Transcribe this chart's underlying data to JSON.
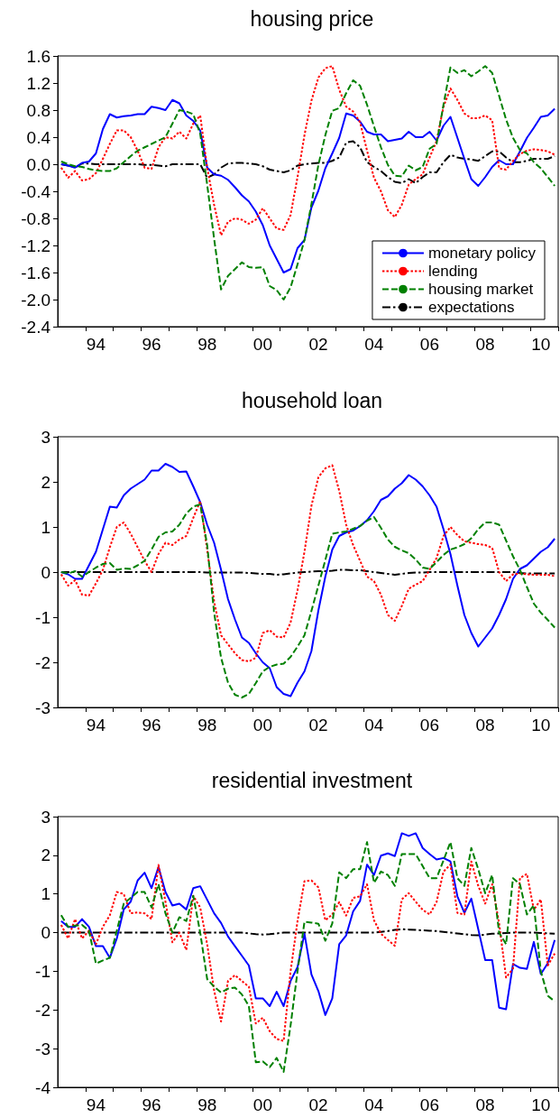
{
  "chart_data": [
    {
      "type": "line",
      "title": "housing price",
      "legend": "bottom right",
      "grid": false,
      "marker": "none",
      "categories": [
        null,
        null,
        null,
        null,
        null,
        "94",
        null,
        null,
        null,
        null,
        null,
        null,
        null,
        "96",
        null,
        null,
        null,
        null,
        null,
        null,
        null,
        "98",
        null,
        null,
        null,
        null,
        null,
        null,
        null,
        "00",
        null,
        null,
        null,
        null,
        null,
        null,
        null,
        "02",
        null,
        null,
        null,
        null,
        null,
        null,
        null,
        "04",
        null,
        null,
        null,
        null,
        null,
        null,
        null,
        "06",
        null,
        null,
        null,
        null,
        null,
        null,
        null,
        "08",
        null,
        null,
        null,
        null,
        null,
        null,
        null,
        "10",
        null,
        null
      ],
      "ylim": [
        -2.4,
        1.6
      ],
      "yticks": [
        {
          "value": -2.4,
          "label": "-2.4"
        },
        {
          "value": -2.0,
          "label": "-2.0"
        },
        {
          "value": -1.6,
          "label": "-1.6"
        },
        {
          "value": -1.2,
          "label": "-1.2"
        },
        {
          "value": -0.8,
          "label": "-0.8"
        },
        {
          "value": -0.4,
          "label": "-0.4"
        },
        {
          "value": 0,
          "label": "0.0"
        },
        {
          "value": 0.4,
          "label": "0.4"
        },
        {
          "value": 0.8,
          "label": "0.8"
        },
        {
          "value": 1.2,
          "label": "1.2"
        },
        {
          "value": 1.6,
          "label": "1.6"
        }
      ],
      "series": [
        {
          "name": "monetary policy",
          "color": "#0000ff",
          "line_style": "solid",
          "values": [
            0.0,
            -0.02,
            -0.05,
            0.02,
            0.04,
            0.16,
            0.52,
            0.74,
            0.69,
            0.71,
            0.72,
            0.74,
            0.74,
            0.85,
            0.83,
            0.8,
            0.95,
            0.9,
            0.72,
            0.64,
            0.5,
            -0.05,
            -0.15,
            -0.17,
            -0.23,
            -0.34,
            -0.46,
            -0.55,
            -0.7,
            -0.9,
            -1.2,
            -1.4,
            -1.6,
            -1.55,
            -1.24,
            -1.12,
            -0.64,
            -0.39,
            -0.06,
            0.16,
            0.39,
            0.75,
            0.72,
            0.63,
            0.48,
            0.44,
            0.44,
            0.34,
            0.36,
            0.38,
            0.48,
            0.4,
            0.4,
            0.48,
            0.35,
            0.57,
            0.7,
            0.39,
            0.08,
            -0.22,
            -0.32,
            -0.19,
            -0.04,
            0.06,
            0.0,
            0.0,
            0.19,
            0.39,
            0.54,
            0.7,
            0.72,
            0.82
          ]
        },
        {
          "name": "lending",
          "color": "#ff0000",
          "line_style": "dotted",
          "values": [
            -0.05,
            -0.2,
            -0.1,
            -0.24,
            -0.22,
            -0.13,
            0.08,
            0.3,
            0.5,
            0.5,
            0.4,
            0.2,
            -0.05,
            -0.07,
            0.25,
            0.4,
            0.38,
            0.48,
            0.38,
            0.6,
            0.72,
            -0.05,
            -0.6,
            -1.05,
            -0.85,
            -0.8,
            -0.82,
            -0.88,
            -0.82,
            -0.65,
            -0.8,
            -0.95,
            -0.97,
            -0.75,
            -0.19,
            0.43,
            0.94,
            1.28,
            1.42,
            1.45,
            1.1,
            0.85,
            0.78,
            0.62,
            0.2,
            -0.2,
            -0.4,
            -0.68,
            -0.78,
            -0.6,
            -0.3,
            -0.22,
            -0.15,
            0.1,
            0.34,
            0.85,
            1.12,
            0.95,
            0.75,
            0.68,
            0.68,
            0.72,
            0.65,
            -0.06,
            -0.08,
            0.05,
            0.15,
            0.2,
            0.22,
            0.21,
            0.19,
            0.14
          ]
        },
        {
          "name": "housing market",
          "color": "#008000",
          "line_style": "dashed",
          "values": [
            0.04,
            0.0,
            -0.03,
            -0.04,
            -0.07,
            -0.09,
            -0.1,
            -0.1,
            -0.06,
            0.03,
            0.12,
            0.2,
            0.25,
            0.3,
            0.35,
            0.4,
            0.6,
            0.8,
            0.78,
            0.74,
            0.45,
            -0.3,
            -1.1,
            -1.85,
            -1.65,
            -1.55,
            -1.45,
            -1.52,
            -1.53,
            -1.52,
            -1.8,
            -1.86,
            -2.0,
            -1.82,
            -1.48,
            -1.12,
            -0.59,
            -0.01,
            0.43,
            0.79,
            0.83,
            1.05,
            1.24,
            1.16,
            0.88,
            0.56,
            0.25,
            -0.01,
            -0.17,
            -0.18,
            -0.02,
            -0.09,
            -0.04,
            0.23,
            0.3,
            0.88,
            1.43,
            1.35,
            1.39,
            1.3,
            1.37,
            1.45,
            1.35,
            1.01,
            0.66,
            0.39,
            0.21,
            0.16,
            0.03,
            -0.06,
            -0.19,
            -0.32
          ]
        },
        {
          "name": "expectations",
          "color": "#000000",
          "line_style": "dashdot",
          "values": [
            0.0,
            -0.02,
            -0.05,
            0.01,
            0.01,
            0.0,
            0.0,
            0.0,
            0.0,
            0.0,
            0.0,
            0.0,
            -0.01,
            -0.01,
            -0.02,
            -0.03,
            0.0,
            0.0,
            0.0,
            0.0,
            0.0,
            -0.2,
            -0.15,
            -0.05,
            0.01,
            0.02,
            0.02,
            0.01,
            0.0,
            -0.03,
            -0.08,
            -0.1,
            -0.12,
            -0.09,
            -0.02,
            0.0,
            0.01,
            0.02,
            0.02,
            0.05,
            0.1,
            0.32,
            0.34,
            0.25,
            0.03,
            -0.04,
            -0.1,
            -0.19,
            -0.26,
            -0.28,
            -0.22,
            -0.28,
            -0.19,
            -0.12,
            -0.12,
            0.03,
            0.14,
            0.1,
            0.08,
            0.07,
            0.05,
            0.12,
            0.19,
            0.19,
            0.1,
            0.03,
            0.03,
            0.05,
            0.08,
            0.08,
            0.08,
            0.12
          ]
        }
      ]
    },
    {
      "type": "line",
      "title": "household loan",
      "grid": false,
      "marker": "none",
      "categories": [
        null,
        null,
        null,
        null,
        null,
        "94",
        null,
        null,
        null,
        null,
        null,
        null,
        null,
        "96",
        null,
        null,
        null,
        null,
        null,
        null,
        null,
        "98",
        null,
        null,
        null,
        null,
        null,
        null,
        null,
        "00",
        null,
        null,
        null,
        null,
        null,
        null,
        null,
        "02",
        null,
        null,
        null,
        null,
        null,
        null,
        null,
        "04",
        null,
        null,
        null,
        null,
        null,
        null,
        null,
        "06",
        null,
        null,
        null,
        null,
        null,
        null,
        null,
        "08",
        null,
        null,
        null,
        null,
        null,
        null,
        null,
        "10",
        null,
        null
      ],
      "ylim": [
        -3,
        3
      ],
      "yticks": [
        -3,
        -2,
        -1,
        0,
        1,
        2,
        3
      ],
      "series": [
        {
          "color": "#0000ff",
          "line_style": "solid",
          "values": [
            0.0,
            -0.05,
            -0.15,
            -0.15,
            0.15,
            0.45,
            0.95,
            1.45,
            1.43,
            1.7,
            1.85,
            1.95,
            2.05,
            2.25,
            2.25,
            2.4,
            2.33,
            2.22,
            2.23,
            1.9,
            1.55,
            1.05,
            0.65,
            0.05,
            -0.6,
            -1.05,
            -1.45,
            -1.57,
            -1.8,
            -2.0,
            -2.13,
            -2.55,
            -2.7,
            -2.75,
            -2.45,
            -2.2,
            -1.75,
            -0.85,
            -0.1,
            0.5,
            0.8,
            0.88,
            0.92,
            1.02,
            1.15,
            1.35,
            1.6,
            1.68,
            1.85,
            1.97,
            2.15,
            2.05,
            1.9,
            1.7,
            1.45,
            0.95,
            0.4,
            -0.3,
            -0.95,
            -1.35,
            -1.65,
            -1.45,
            -1.25,
            -0.95,
            -0.6,
            -0.15,
            0.07,
            0.15,
            0.3,
            0.45,
            0.55,
            0.74
          ]
        },
        {
          "color": "#ff0000",
          "line_style": "dotted",
          "values": [
            -0.05,
            -0.3,
            -0.18,
            -0.5,
            -0.52,
            -0.25,
            0.05,
            0.55,
            1.0,
            1.1,
            0.85,
            0.55,
            0.25,
            0.0,
            0.4,
            0.65,
            0.6,
            0.72,
            0.8,
            1.2,
            1.57,
            0.5,
            -0.65,
            -1.4,
            -1.6,
            -1.8,
            -1.95,
            -1.98,
            -1.9,
            -1.35,
            -1.29,
            -1.43,
            -1.45,
            -1.12,
            -0.4,
            0.45,
            1.47,
            2.1,
            2.3,
            2.37,
            1.8,
            1.05,
            0.6,
            0.25,
            -0.1,
            -0.2,
            -0.5,
            -0.95,
            -1.08,
            -0.75,
            -0.37,
            -0.28,
            -0.2,
            0.05,
            0.31,
            0.8,
            1.0,
            0.82,
            0.68,
            0.65,
            0.62,
            0.6,
            0.54,
            0.0,
            -0.2,
            -0.05,
            -0.03,
            -0.05,
            -0.06,
            -0.06,
            -0.06,
            -0.09
          ]
        },
        {
          "color": "#008000",
          "line_style": "dashed",
          "values": [
            0.0,
            -0.03,
            0.02,
            -0.1,
            0.0,
            0.1,
            0.18,
            0.2,
            0.05,
            0.08,
            0.07,
            0.15,
            0.25,
            0.5,
            0.78,
            0.88,
            0.9,
            1.05,
            1.3,
            1.45,
            1.5,
            0.6,
            -0.9,
            -1.9,
            -2.45,
            -2.72,
            -2.78,
            -2.7,
            -2.46,
            -2.2,
            -2.1,
            -2.05,
            -2.03,
            -1.88,
            -1.65,
            -1.4,
            -0.86,
            -0.3,
            0.27,
            0.85,
            0.88,
            0.9,
            0.96,
            1.02,
            1.14,
            1.22,
            0.98,
            0.72,
            0.56,
            0.48,
            0.42,
            0.28,
            0.1,
            0.07,
            0.22,
            0.38,
            0.5,
            0.55,
            0.62,
            0.75,
            0.95,
            1.1,
            1.1,
            1.05,
            0.7,
            0.35,
            0.05,
            -0.33,
            -0.7,
            -0.9,
            -1.06,
            -1.23
          ]
        },
        {
          "color": "#000000",
          "line_style": "dashdot",
          "values": [
            0,
            0,
            0,
            0,
            0,
            0,
            0,
            0,
            0,
            0,
            0,
            0,
            0,
            0,
            0,
            0,
            0,
            0,
            0,
            0,
            0,
            -0.01,
            -0.01,
            -0.01,
            -0.01,
            -0.01,
            -0.01,
            -0.02,
            -0.03,
            -0.04,
            -0.04,
            -0.06,
            -0.05,
            -0.03,
            -0.01,
            0.0,
            0.01,
            0.02,
            0.02,
            0.03,
            0.05,
            0.05,
            0.04,
            0.04,
            0.02,
            0.0,
            -0.02,
            -0.04,
            -0.06,
            -0.04,
            -0.02,
            -0.01,
            -0.01,
            0,
            0,
            0,
            0,
            0,
            0,
            0,
            0,
            0,
            0,
            0,
            0,
            0,
            -0.02,
            -0.03,
            -0.03,
            -0.03,
            -0.03,
            -0.03
          ]
        }
      ]
    },
    {
      "type": "line",
      "title": "residential investment",
      "grid": false,
      "marker": "none",
      "categories": [
        null,
        null,
        null,
        null,
        null,
        "94",
        null,
        null,
        null,
        null,
        null,
        null,
        null,
        "96",
        null,
        null,
        null,
        null,
        null,
        null,
        null,
        "98",
        null,
        null,
        null,
        null,
        null,
        null,
        null,
        "00",
        null,
        null,
        null,
        null,
        null,
        null,
        null,
        "02",
        null,
        null,
        null,
        null,
        null,
        null,
        null,
        "04",
        null,
        null,
        null,
        null,
        null,
        null,
        null,
        "06",
        null,
        null,
        null,
        null,
        null,
        null,
        null,
        "08",
        null,
        null,
        null,
        null,
        null,
        null,
        null,
        "10",
        null,
        null
      ],
      "ylim": [
        -4,
        3
      ],
      "yticks": [
        -4,
        -3,
        -2,
        -1,
        0,
        1,
        2,
        3
      ],
      "series": [
        {
          "color": "#0000ff",
          "line_style": "solid",
          "values": [
            0.3,
            0.15,
            0.15,
            0.35,
            0.15,
            -0.35,
            -0.35,
            -0.65,
            -0.15,
            0.6,
            0.8,
            1.35,
            1.55,
            1.15,
            1.7,
            1.05,
            0.7,
            0.75,
            0.6,
            1.15,
            1.2,
            0.85,
            0.5,
            0.25,
            -0.1,
            -0.35,
            -0.6,
            -0.85,
            -1.7,
            -1.7,
            -1.9,
            -1.53,
            -1.9,
            -1.25,
            -0.89,
            -0.03,
            -1.08,
            -1.51,
            -2.13,
            -1.7,
            -0.3,
            -0.07,
            0.55,
            0.82,
            1.76,
            1.49,
            1.99,
            2.05,
            1.98,
            2.57,
            2.5,
            2.57,
            2.19,
            2.03,
            1.89,
            1.93,
            1.84,
            0.94,
            0.51,
            0.88,
            0.09,
            -0.71,
            -0.71,
            -1.94,
            -1.98,
            -0.81,
            -0.91,
            -0.94,
            -0.24,
            -1.07,
            -0.79,
            -0.19
          ]
        },
        {
          "color": "#ff0000",
          "line_style": "dotted",
          "values": [
            0.2,
            -0.15,
            0.35,
            -0.15,
            0.05,
            -0.3,
            0.15,
            0.45,
            1.05,
            1.0,
            0.5,
            0.52,
            0.5,
            0.35,
            1.75,
            0.8,
            -0.25,
            0.0,
            -0.45,
            0.95,
            0.65,
            -0.3,
            -1.5,
            -2.3,
            -1.25,
            -1.1,
            -1.25,
            -1.4,
            -2.35,
            -2.2,
            -2.55,
            -2.75,
            -2.8,
            -1.0,
            0.3,
            1.33,
            1.35,
            1.17,
            0.32,
            0.47,
            0.79,
            0.44,
            0.9,
            0.94,
            1.25,
            0.32,
            -0.03,
            -0.19,
            -0.34,
            0.86,
            1.02,
            0.8,
            0.59,
            0.47,
            0.79,
            1.58,
            1.76,
            0.51,
            0.47,
            1.84,
            1.21,
            0.75,
            1.25,
            0.24,
            -1.16,
            -0.93,
            1.41,
            1.52,
            0.59,
            0.86,
            -0.85,
            -0.54
          ]
        },
        {
          "color": "#008000",
          "line_style": "dashed",
          "values": [
            0.45,
            0.15,
            0.18,
            0.2,
            0.05,
            -0.8,
            -0.72,
            -0.65,
            0.05,
            0.75,
            0.9,
            1.05,
            1.05,
            0.65,
            1.25,
            0.5,
            0.0,
            0.4,
            0.3,
            0.95,
            0.0,
            -1.2,
            -1.4,
            -1.55,
            -1.45,
            -1.42,
            -1.6,
            -1.9,
            -3.35,
            -3.33,
            -3.48,
            -3.24,
            -3.6,
            -2.4,
            -1.0,
            0.28,
            0.26,
            0.23,
            -0.21,
            0.24,
            1.56,
            1.41,
            1.64,
            1.64,
            2.34,
            1.29,
            1.58,
            1.49,
            1.21,
            2.03,
            2.03,
            2.03,
            1.72,
            1.41,
            1.41,
            1.87,
            2.34,
            1.41,
            1.21,
            2.19,
            1.64,
            1.02,
            1.49,
            0.0,
            -0.3,
            1.41,
            1.25,
            0.47,
            0.71,
            -1.0,
            -1.63,
            -1.78
          ]
        },
        {
          "color": "#000000",
          "line_style": "dashdot",
          "values": [
            0,
            0,
            0,
            0,
            0,
            0,
            0,
            0,
            0,
            0,
            0,
            0,
            0,
            0,
            0,
            0,
            0,
            0,
            0,
            0,
            0,
            0,
            0,
            0,
            0,
            0,
            0,
            -0.02,
            -0.04,
            -0.05,
            -0.04,
            -0.02,
            0,
            0,
            0,
            0,
            0,
            0,
            0,
            0,
            0,
            0,
            0,
            0,
            0,
            0,
            0.02,
            0.04,
            0.07,
            0.09,
            0.08,
            0.07,
            0.06,
            0.05,
            0.04,
            0.02,
            0.0,
            -0.02,
            -0.04,
            -0.06,
            -0.07,
            -0.05,
            -0.03,
            -0.02,
            -0.01,
            0,
            0,
            0,
            0,
            -0.01,
            -0.02,
            -0.03
          ]
        }
      ]
    }
  ]
}
